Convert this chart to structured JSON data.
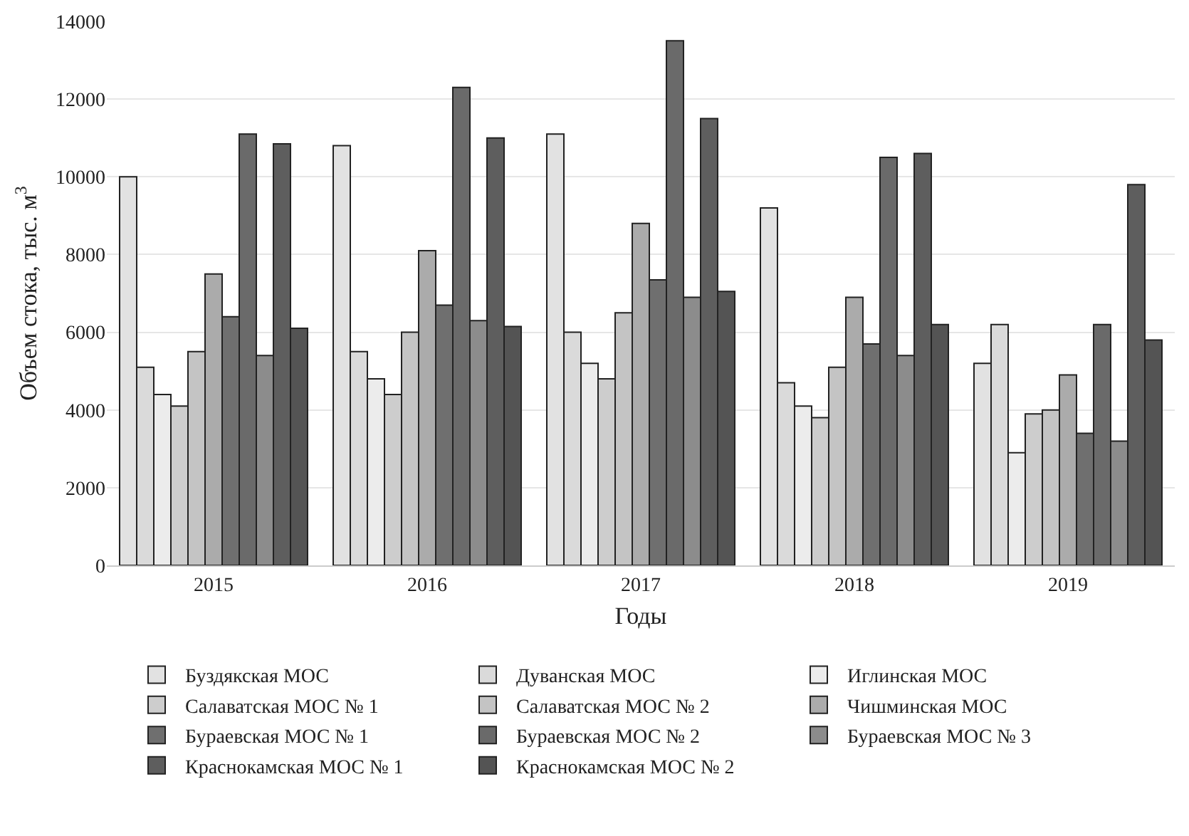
{
  "chart_data": {
    "type": "bar",
    "xlabel": "Годы",
    "ylabel": "Объем стока, тыс. м$^{3}$",
    "categories": [
      "2015",
      "2016",
      "2017",
      "2018",
      "2019"
    ],
    "ylim": [
      0,
      14000
    ],
    "yticks": [
      0,
      2000,
      4000,
      6000,
      8000,
      10000,
      12000,
      14000
    ],
    "grid": "y",
    "legend": "bottom",
    "series": [
      {
        "name": "Буздякская МОС",
        "color": "#e2e2e2",
        "values": [
          10000,
          10800,
          11100,
          9200,
          5200
        ]
      },
      {
        "name": "Дуванская МОС",
        "color": "#dadada",
        "values": [
          5100,
          5500,
          6000,
          4700,
          6200
        ]
      },
      {
        "name": "Иглинская МОС",
        "color": "#ececec",
        "values": [
          4400,
          4800,
          5200,
          4100,
          2900
        ]
      },
      {
        "name": "Салаватская МОС № 1",
        "color": "#cdcdcd",
        "values": [
          4100,
          4400,
          4800,
          3800,
          3900
        ]
      },
      {
        "name": "Салаватская МОС № 2",
        "color": "#c4c4c4",
        "values": [
          5500,
          6000,
          6500,
          5100,
          4000
        ]
      },
      {
        "name": "Чишминская МОС",
        "color": "#ababab",
        "values": [
          7500,
          8100,
          8800,
          6900,
          4900
        ]
      },
      {
        "name": "Бураевская МОС № 1",
        "color": "#6f6f6f",
        "values": [
          6400,
          6700,
          7350,
          5700,
          3400
        ]
      },
      {
        "name": "Бураевская МОС № 2",
        "color": "#6a6a6a",
        "values": [
          11100,
          12300,
          13500,
          10500,
          6200
        ]
      },
      {
        "name": "Бураевская МОС № 3",
        "color": "#8c8c8c",
        "values": [
          5400,
          6300,
          6900,
          5400,
          3200
        ]
      },
      {
        "name": "Краснокамская МОС № 1",
        "color": "#5e5e5e",
        "values": [
          10850,
          11000,
          11500,
          10600,
          9800
        ]
      },
      {
        "name": "Краснокамская МОС № 2",
        "color": "#545454",
        "values": [
          6100,
          6150,
          7050,
          6200,
          5800
        ]
      }
    ]
  }
}
